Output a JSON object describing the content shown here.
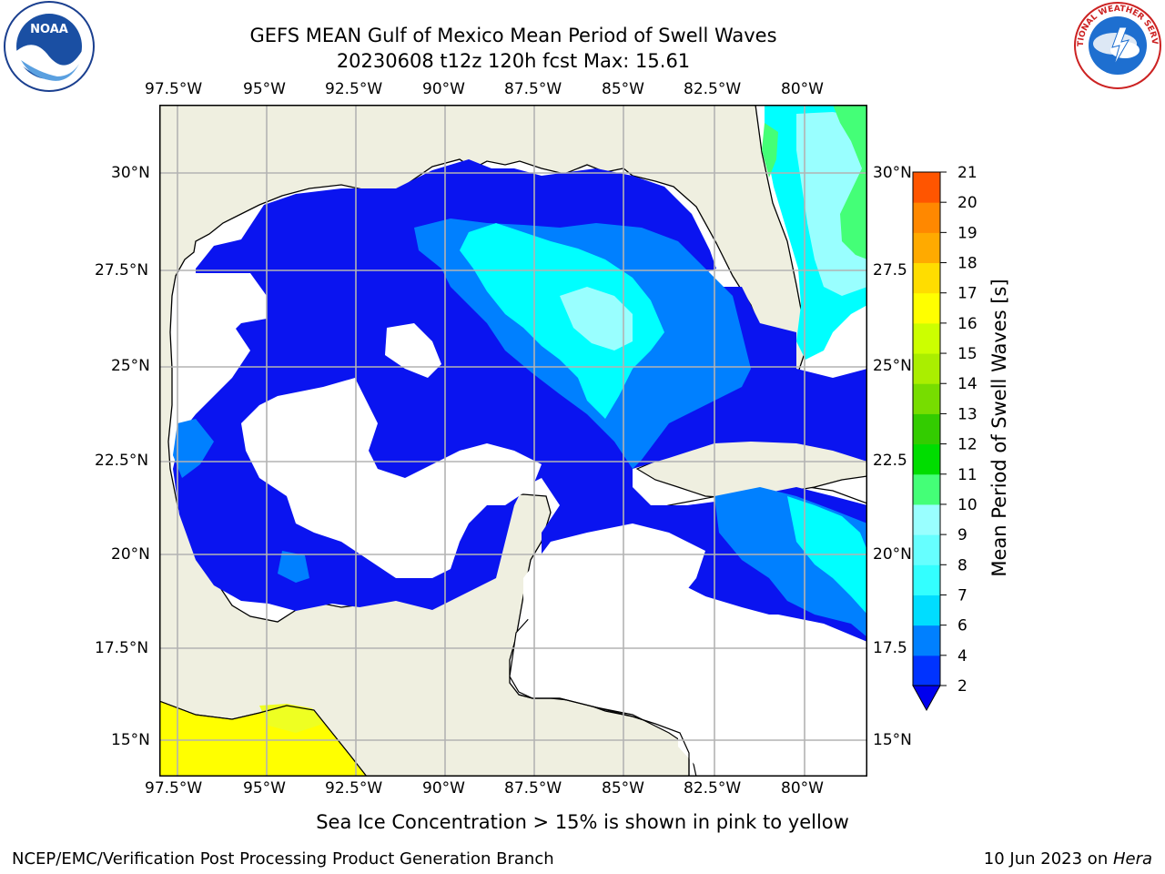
{
  "header": {
    "title_line1": "GEFS MEAN Gulf of Mexico Mean Period of Swell Waves",
    "title_line2": "20230608 t12z 120h fcst   Max: 15.61"
  },
  "logos": {
    "noaa_text": "NOAA",
    "noaa_ring": "NATIONAL OCEANIC AND ATMOSPHERIC ADMINISTRATION · U.S. DEPARTMENT OF COMMERCE",
    "nws_ring": "NATIONAL WEATHER SERVICE"
  },
  "map": {
    "lon_labels": [
      "97.5°W",
      "95°W",
      "92.5°W",
      "90°W",
      "87.5°W",
      "85°W",
      "82.5°W",
      "80°W"
    ],
    "lat_labels_left": [
      "30°N",
      "27.5°N",
      "25°N",
      "22.5°N",
      "20°N",
      "17.5°N",
      "15°N"
    ],
    "lat_labels_right": [
      "30°N",
      "27.5",
      "25°N",
      "22.5",
      "20°N",
      "17.5",
      "15°N"
    ],
    "colors": {
      "land": "#efefe0",
      "no_data": "#ffffff",
      "grid": "#b3b3b3"
    }
  },
  "colorbar": {
    "label": "Mean Period of Swell Waves [s]",
    "ticks": [
      "2",
      "4",
      "6",
      "7",
      "8",
      "9",
      "10",
      "11",
      "12",
      "13",
      "14",
      "15",
      "16",
      "17",
      "18",
      "19",
      "20",
      "21"
    ],
    "colors": [
      "#0033ff",
      "#0080ff",
      "#00ddff",
      "#33ffff",
      "#66ffff",
      "#99ffff",
      "#44ff77",
      "#00dd00",
      "#33cc00",
      "#77dd00",
      "#aaee00",
      "#ccff00",
      "#ffff00",
      "#ffdd00",
      "#ffaa00",
      "#ff8800",
      "#ff5500",
      "#ff2200",
      "#ff0000"
    ]
  },
  "footer": {
    "note": "Sea Ice Concentration > 15% is shown in pink to yellow",
    "credit": "NCEP/EMC/Verification Post Processing Product Generation Branch",
    "date_prefix": "10 Jun 2023 on ",
    "machine": "Hera"
  }
}
